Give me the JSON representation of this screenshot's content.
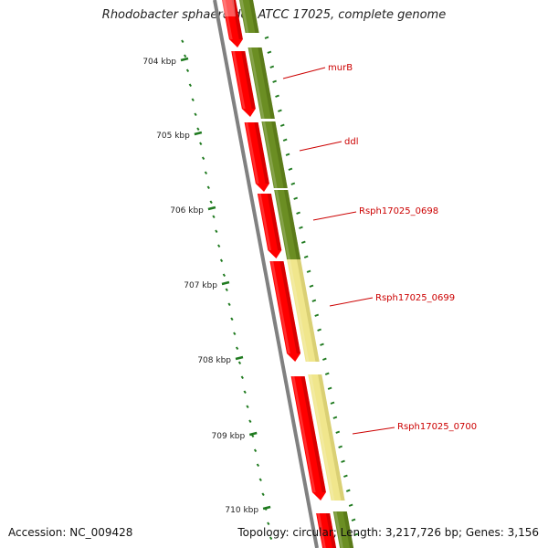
{
  "title": "Rhodobacter sphaeroides ATCC 17025, complete genome",
  "footer": {
    "accession": "Accession: NC_009428",
    "summary": "Topology: circular; Length: 3,217,726 bp; Genes: 3,156"
  },
  "ticks": [
    "704 kbp",
    "705 kbp",
    "706 kbp",
    "707 kbp",
    "708 kbp",
    "709 kbp",
    "710 kbp"
  ],
  "gene_labels": [
    "murB",
    "ddl",
    "Rsph17025_0698",
    "Rsph17025_0699",
    "Rsph17025_0700"
  ],
  "colors": {
    "cds": "#ff0000",
    "cds_dark": "#b80000",
    "olive": "#6b8e23",
    "olive_dark": "#4f6b12",
    "pale_yellow": "#f0e68c",
    "pale_yellow_dark": "#c8bd60",
    "backbone": "#808080",
    "tick": "#1f7a1f",
    "label_line": "#cc0000"
  }
}
